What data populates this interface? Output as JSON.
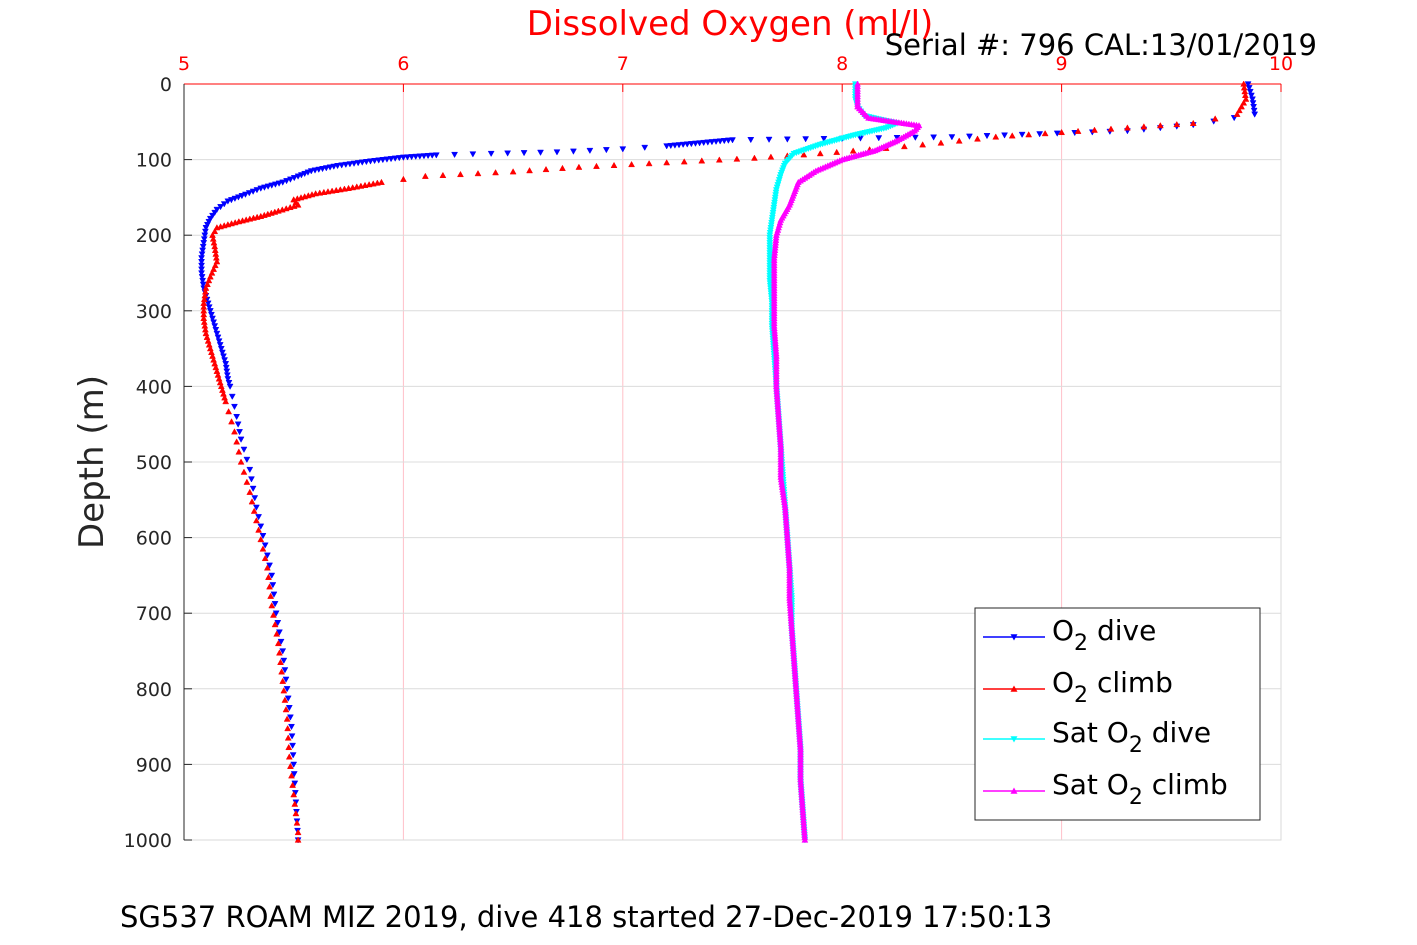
{
  "chart_data": {
    "type": "scatter",
    "title": "Dissolved Oxygen (ml/l)",
    "serial_label": "Serial #: 796  CAL:13/01/2019",
    "ylabel": "Depth (m)",
    "footer": "SG537 ROAM MIZ 2019, dive 418 started 27-Dec-2019 17:50:13",
    "xlim": [
      5,
      10
    ],
    "ylim": [
      0,
      1000
    ],
    "y_reversed": true,
    "x_axis_position": "top",
    "x_ticks": [
      "5",
      "6",
      "7",
      "8",
      "9",
      "10"
    ],
    "y_ticks": [
      "0",
      "100",
      "200",
      "300",
      "400",
      "500",
      "600",
      "700",
      "800",
      "900",
      "1000"
    ],
    "grid": true,
    "legend_position": "bottom-right",
    "series": [
      {
        "name": "O2 dive",
        "legend_main": "O",
        "legend_sub": "2",
        "legend_tail": " dive",
        "color": "#0000ff",
        "marker": "triangle-down",
        "points": [
          [
            9.85,
            0
          ],
          [
            9.87,
            20
          ],
          [
            9.88,
            40
          ],
          [
            9.6,
            54
          ],
          [
            9.3,
            62
          ],
          [
            8.9,
            66
          ],
          [
            8.5,
            70
          ],
          [
            7.5,
            74
          ],
          [
            7.35,
            78
          ],
          [
            7.2,
            82
          ],
          [
            7.0,
            86
          ],
          [
            6.7,
            90
          ],
          [
            6.4,
            92
          ],
          [
            6.15,
            94
          ],
          [
            6.0,
            97
          ],
          [
            5.85,
            102
          ],
          [
            5.7,
            108
          ],
          [
            5.58,
            115
          ],
          [
            5.52,
            122
          ],
          [
            5.45,
            130
          ],
          [
            5.35,
            138
          ],
          [
            5.28,
            146
          ],
          [
            5.2,
            155
          ],
          [
            5.15,
            166
          ],
          [
            5.12,
            178
          ],
          [
            5.1,
            190
          ],
          [
            5.09,
            210
          ],
          [
            5.08,
            230
          ],
          [
            5.08,
            250
          ],
          [
            5.09,
            270
          ],
          [
            5.11,
            290
          ],
          [
            5.13,
            310
          ],
          [
            5.15,
            330
          ],
          [
            5.17,
            350
          ],
          [
            5.19,
            370
          ],
          [
            5.2,
            390
          ],
          [
            5.21,
            400
          ],
          [
            5.24,
            440
          ],
          [
            5.26,
            470
          ],
          [
            5.3,
            510
          ],
          [
            5.33,
            560
          ],
          [
            5.37,
            610
          ],
          [
            5.4,
            650
          ],
          [
            5.42,
            700
          ],
          [
            5.45,
            750
          ],
          [
            5.47,
            800
          ],
          [
            5.49,
            850
          ],
          [
            5.5,
            900
          ],
          [
            5.51,
            950
          ],
          [
            5.52,
            1000
          ]
        ]
      },
      {
        "name": "O2 climb",
        "legend_main": "O",
        "legend_sub": "2",
        "legend_tail": " climb",
        "color": "#ff0000",
        "marker": "triangle-up",
        "points": [
          [
            9.83,
            0
          ],
          [
            9.84,
            20
          ],
          [
            9.8,
            40
          ],
          [
            9.6,
            52
          ],
          [
            9.3,
            58
          ],
          [
            9.0,
            64
          ],
          [
            8.7,
            70
          ],
          [
            8.45,
            78
          ],
          [
            8.2,
            85
          ],
          [
            7.9,
            92
          ],
          [
            7.6,
            98
          ],
          [
            7.2,
            104
          ],
          [
            6.8,
            110
          ],
          [
            6.5,
            116
          ],
          [
            6.1,
            122
          ],
          [
            5.9,
            130
          ],
          [
            5.75,
            138
          ],
          [
            5.6,
            145
          ],
          [
            5.5,
            153
          ],
          [
            5.52,
            160
          ],
          [
            5.43,
            168
          ],
          [
            5.35,
            175
          ],
          [
            5.25,
            182
          ],
          [
            5.15,
            190
          ],
          [
            5.13,
            200
          ],
          [
            5.14,
            215
          ],
          [
            5.15,
            235
          ],
          [
            5.12,
            255
          ],
          [
            5.1,
            270
          ],
          [
            5.09,
            290
          ],
          [
            5.09,
            310
          ],
          [
            5.1,
            330
          ],
          [
            5.12,
            350
          ],
          [
            5.14,
            370
          ],
          [
            5.16,
            390
          ],
          [
            5.19,
            420
          ],
          [
            5.23,
            460
          ],
          [
            5.26,
            500
          ],
          [
            5.3,
            540
          ],
          [
            5.34,
            590
          ],
          [
            5.38,
            640
          ],
          [
            5.4,
            690
          ],
          [
            5.43,
            740
          ],
          [
            5.45,
            790
          ],
          [
            5.47,
            840
          ],
          [
            5.48,
            890
          ],
          [
            5.5,
            940
          ],
          [
            5.52,
            990
          ],
          [
            5.52,
            1000
          ]
        ]
      },
      {
        "name": "Sat O2 dive",
        "legend_main": "Sat O",
        "legend_sub": "2",
        "legend_tail": " dive",
        "color": "#00ffff",
        "marker": "triangle-down",
        "points": [
          [
            8.06,
            0
          ],
          [
            8.06,
            10
          ],
          [
            8.06,
            20
          ],
          [
            8.07,
            30
          ],
          [
            8.1,
            42
          ],
          [
            8.25,
            52
          ],
          [
            8.2,
            58
          ],
          [
            8.05,
            68
          ],
          [
            7.9,
            80
          ],
          [
            7.78,
            92
          ],
          [
            7.74,
            105
          ],
          [
            7.72,
            120
          ],
          [
            7.7,
            140
          ],
          [
            7.69,
            160
          ],
          [
            7.68,
            180
          ],
          [
            7.67,
            200
          ],
          [
            7.67,
            230
          ],
          [
            7.67,
            260
          ],
          [
            7.68,
            290
          ],
          [
            7.68,
            320
          ],
          [
            7.69,
            360
          ],
          [
            7.7,
            400
          ],
          [
            7.71,
            440
          ],
          [
            7.72,
            480
          ],
          [
            7.73,
            520
          ],
          [
            7.74,
            560
          ],
          [
            7.75,
            600
          ],
          [
            7.76,
            640
          ],
          [
            7.77,
            680
          ],
          [
            7.77,
            720
          ],
          [
            7.78,
            760
          ],
          [
            7.79,
            800
          ],
          [
            7.8,
            840
          ],
          [
            7.81,
            880
          ],
          [
            7.81,
            920
          ],
          [
            7.82,
            960
          ],
          [
            7.83,
            1000
          ]
        ]
      },
      {
        "name": "Sat O2 climb",
        "legend_main": "Sat O",
        "legend_sub": "2",
        "legend_tail": " climb",
        "color": "#ff00ff",
        "marker": "triangle-up",
        "points": [
          [
            8.07,
            0
          ],
          [
            8.07,
            10
          ],
          [
            8.07,
            20
          ],
          [
            8.07,
            30
          ],
          [
            8.12,
            45
          ],
          [
            8.35,
            55
          ],
          [
            8.33,
            62
          ],
          [
            8.25,
            75
          ],
          [
            8.15,
            88
          ],
          [
            8.0,
            100
          ],
          [
            7.88,
            115
          ],
          [
            7.8,
            130
          ],
          [
            7.78,
            145
          ],
          [
            7.76,
            160
          ],
          [
            7.72,
            180
          ],
          [
            7.7,
            200
          ],
          [
            7.69,
            230
          ],
          [
            7.69,
            260
          ],
          [
            7.69,
            290
          ],
          [
            7.69,
            320
          ],
          [
            7.7,
            360
          ],
          [
            7.7,
            400
          ],
          [
            7.71,
            440
          ],
          [
            7.72,
            480
          ],
          [
            7.72,
            520
          ],
          [
            7.74,
            560
          ],
          [
            7.75,
            600
          ],
          [
            7.76,
            640
          ],
          [
            7.76,
            680
          ],
          [
            7.77,
            720
          ],
          [
            7.78,
            760
          ],
          [
            7.79,
            800
          ],
          [
            7.8,
            840
          ],
          [
            7.81,
            880
          ],
          [
            7.81,
            920
          ],
          [
            7.82,
            960
          ],
          [
            7.83,
            1000
          ]
        ]
      }
    ]
  }
}
